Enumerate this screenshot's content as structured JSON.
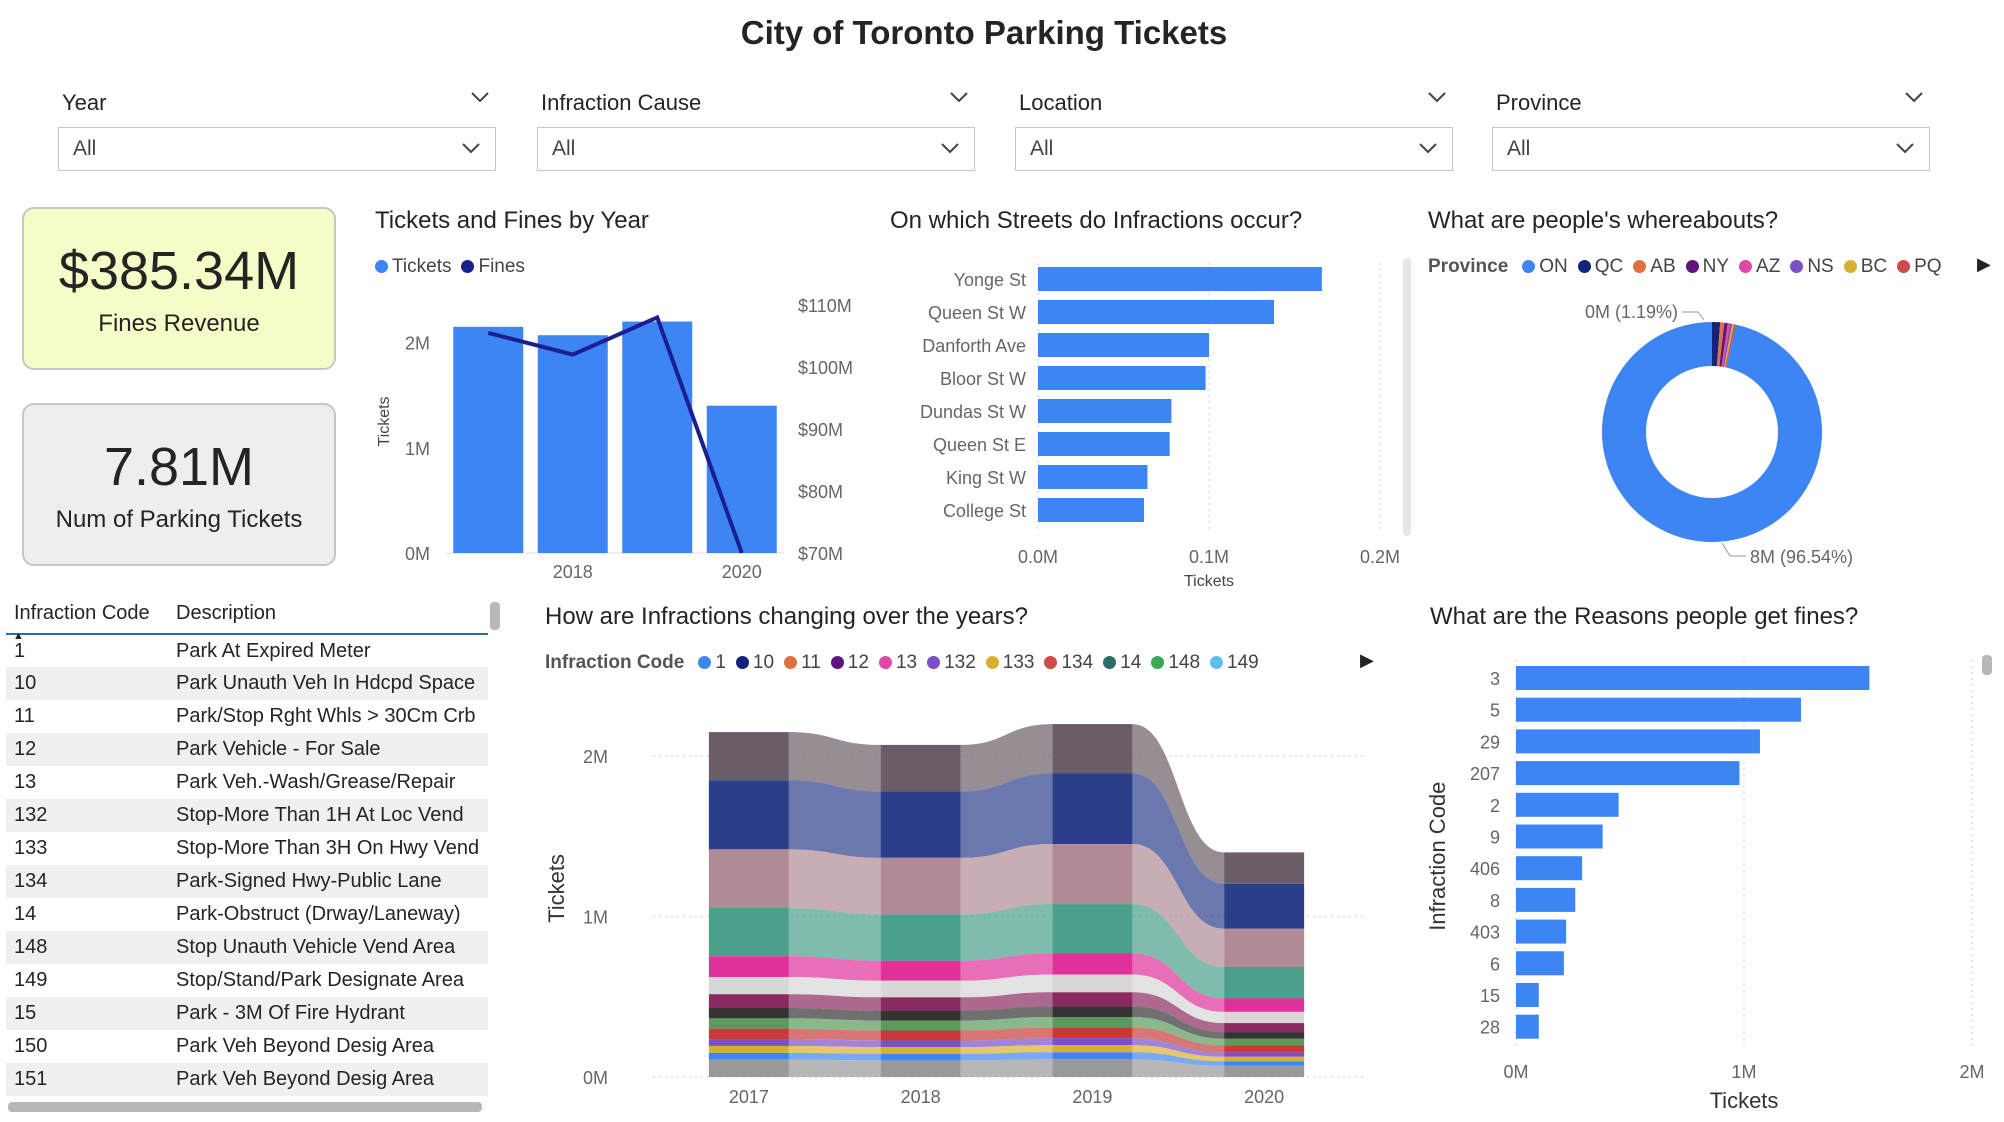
{
  "header": {
    "title": "City of Toronto Parking Tickets"
  },
  "slicers": [
    {
      "label": "Year",
      "value": "All"
    },
    {
      "label": "Infraction Cause",
      "value": "All"
    },
    {
      "label": "Location",
      "value": "All"
    },
    {
      "label": "Province",
      "value": "All"
    }
  ],
  "cards": {
    "fines": {
      "value": "$385.34M",
      "label": "Fines Revenue",
      "bg": "#f6fbc8"
    },
    "tickets": {
      "value": "7.81M",
      "label": "Num of Parking Tickets",
      "bg": "#eeeeee"
    }
  },
  "code_table": {
    "headers": [
      "Infraction Code",
      "Description"
    ],
    "rows": [
      [
        "1",
        "Park At Expired Meter"
      ],
      [
        "10",
        "Park Unauth Veh In Hdcpd Space"
      ],
      [
        "11",
        "Park/Stop Rght Whls > 30Cm Crb"
      ],
      [
        "12",
        "Park Vehicle - For Sale"
      ],
      [
        "13",
        "Park Veh.-Wash/Grease/Repair"
      ],
      [
        "132",
        "Stop-More Than 1H At Loc Vend"
      ],
      [
        "133",
        "Stop-More Than 3H On Hwy Vend"
      ],
      [
        "134",
        "Park-Signed Hwy-Public Lane"
      ],
      [
        "14",
        "Park-Obstruct (Drway/Laneway)"
      ],
      [
        "148",
        "Stop Unauth Vehicle Vend Area"
      ],
      [
        "149",
        "Stop/Stand/Park Designate Area"
      ],
      [
        "15",
        "Park - 3M Of Fire Hydrant"
      ],
      [
        "150",
        "Park Veh Beyond Desig Area"
      ],
      [
        "151",
        "Park Veh Beyond Desig Area"
      ]
    ]
  },
  "colors": {
    "accent": "#3d85f4",
    "line": "#1a1f8f"
  },
  "chart_data": [
    {
      "id": "tickets_fines",
      "type": "bar",
      "title": "Tickets and Fines by Year",
      "legend": [
        "Tickets",
        "Fines"
      ],
      "ylabel": "Tickets",
      "x": [
        2017,
        2018,
        2019,
        2020
      ],
      "xtick_labels": [
        "2018",
        "2020"
      ],
      "series": [
        {
          "name": "Tickets",
          "kind": "bar",
          "values": [
            2.15,
            2.07,
            2.2,
            1.4
          ]
        },
        {
          "name": "Fines",
          "kind": "line",
          "axis": "right",
          "values": [
            105.5,
            102.0,
            108.0,
            70.0
          ]
        }
      ],
      "ylim": [
        0,
        2.2
      ],
      "ytick_labels": [
        "0M",
        "1M",
        "2M"
      ],
      "ylim_right": [
        70,
        110
      ],
      "ytick_labels_right": [
        "$70M",
        "$80M",
        "$90M",
        "$100M",
        "$110M"
      ]
    },
    {
      "id": "streets",
      "type": "bar",
      "orientation": "horizontal",
      "title": "On which Streets do Infractions occur?",
      "xlabel": "Tickets",
      "categories": [
        "Yonge St",
        "Queen St W",
        "Danforth Ave",
        "Bloor St W",
        "Dundas St W",
        "Queen St E",
        "King St W",
        "College St"
      ],
      "values": [
        0.166,
        0.138,
        0.1,
        0.098,
        0.078,
        0.077,
        0.064,
        0.062
      ],
      "xlim": [
        0,
        0.2
      ],
      "xtick_labels": [
        "0.0M",
        "0.1M",
        "0.2M"
      ]
    },
    {
      "id": "province",
      "type": "pie",
      "title": "What are people's whereabouts?",
      "legend_title": "Province",
      "categories": [
        "ON",
        "QC",
        "AB",
        "NY",
        "AZ",
        "NS",
        "BC",
        "PQ"
      ],
      "colors": [
        "#3d85f4",
        "#14237a",
        "#e07040",
        "#5c1480",
        "#e048a8",
        "#7a4fc8",
        "#d8b030",
        "#d04848"
      ],
      "values": [
        96.54,
        1.19,
        0.6,
        0.5,
        0.35,
        0.3,
        0.27,
        0.25
      ],
      "annotations": [
        "0M (1.19%)",
        "8M (96.54%)"
      ]
    },
    {
      "id": "infraction_trend",
      "type": "area",
      "title": "How are Infractions changing over the years?",
      "legend_title": "Infraction Code",
      "legend": [
        "1",
        "10",
        "11",
        "12",
        "13",
        "132",
        "133",
        "134",
        "14",
        "148",
        "149"
      ],
      "legend_colors": [
        "#3d85f4",
        "#14237a",
        "#e07040",
        "#5c1480",
        "#e048a8",
        "#7a4fc8",
        "#d8b030",
        "#d04848",
        "#2e6b6b",
        "#3aa857",
        "#5cbfe8"
      ],
      "ylabel": "Tickets",
      "x": [
        "2017",
        "2018",
        "2019",
        "2020"
      ],
      "ylim": [
        0,
        2.2
      ],
      "ytick_labels": [
        "0M",
        "1M",
        "2M"
      ],
      "totals": [
        2.15,
        2.07,
        2.2,
        1.4
      ]
    },
    {
      "id": "reasons",
      "type": "bar",
      "orientation": "horizontal",
      "title": "What are the Reasons people get fines?",
      "xlabel": "Tickets",
      "ylabel": "Infraction Code",
      "categories": [
        "3",
        "5",
        "29",
        "207",
        "2",
        "9",
        "406",
        "8",
        "403",
        "6",
        "15",
        "28"
      ],
      "values": [
        1.55,
        1.25,
        1.07,
        0.98,
        0.45,
        0.38,
        0.29,
        0.26,
        0.22,
        0.21,
        0.1,
        0.1
      ],
      "xlim": [
        0,
        2
      ],
      "xtick_labels": [
        "0M",
        "1M",
        "2M"
      ]
    }
  ]
}
